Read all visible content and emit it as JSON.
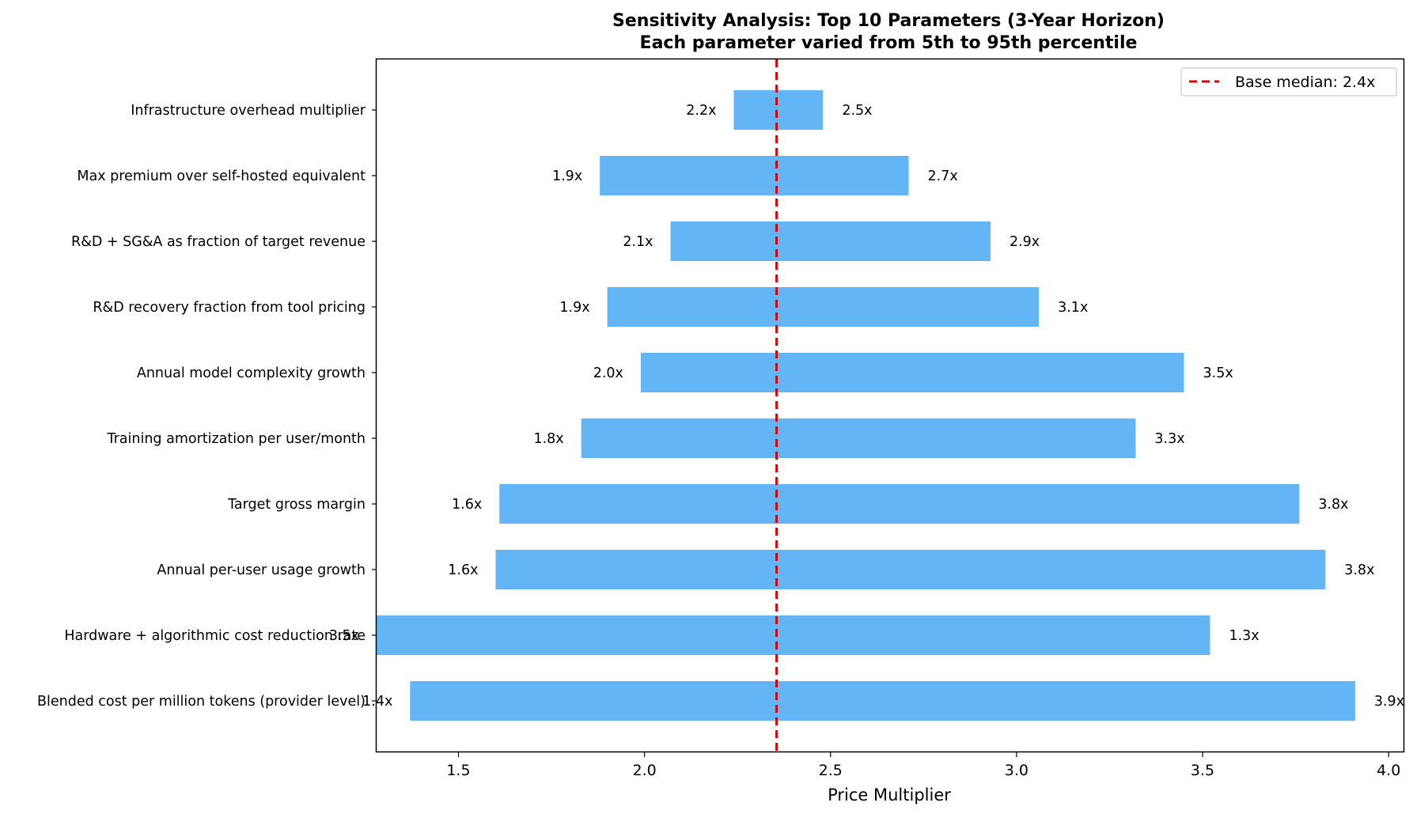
{
  "chart_data": {
    "type": "bar",
    "orientation": "horizontal",
    "title": "Sensitivity Analysis: Top 10 Parameters (3-Year Horizon)",
    "subtitle": "Each parameter varied from 5th to 95th percentile",
    "xlabel": "Price Multiplier",
    "xlim": [
      1.28,
      4.04
    ],
    "xticks": [
      1.5,
      2.0,
      2.5,
      3.0,
      3.5,
      4.0
    ],
    "xtick_labels": [
      "1.5",
      "2.0",
      "2.5",
      "3.0",
      "3.5",
      "4.0"
    ],
    "base_median": 2.355,
    "legend": {
      "label": "Base median: 2.4x",
      "placement": "top-right"
    },
    "bar_color": "#64b5f6",
    "median_color": "#dd0000",
    "grid": false,
    "parameters": [
      {
        "name": "Infrastructure overhead multiplier",
        "low": 2.24,
        "high": 2.48,
        "low_label": "2.2x",
        "high_label": "2.5x"
      },
      {
        "name": "Max premium over self-hosted equivalent",
        "low": 1.88,
        "high": 2.71,
        "low_label": "1.9x",
        "high_label": "2.7x"
      },
      {
        "name": "R&D + SG&A as fraction of target revenue",
        "low": 2.07,
        "high": 2.93,
        "low_label": "2.1x",
        "high_label": "2.9x"
      },
      {
        "name": "R&D recovery fraction from tool pricing",
        "low": 1.9,
        "high": 3.06,
        "low_label": "1.9x",
        "high_label": "3.1x"
      },
      {
        "name": "Annual model complexity growth",
        "low": 1.99,
        "high": 3.45,
        "low_label": "2.0x",
        "high_label": "3.5x"
      },
      {
        "name": "Training amortization per user/month",
        "low": 1.83,
        "high": 3.32,
        "low_label": "1.8x",
        "high_label": "3.3x"
      },
      {
        "name": "Target gross margin",
        "low": 1.61,
        "high": 3.76,
        "low_label": "1.6x",
        "high_label": "3.8x"
      },
      {
        "name": "Annual per-user usage growth",
        "low": 1.6,
        "high": 3.83,
        "low_label": "1.6x",
        "high_label": "3.8x"
      },
      {
        "name": "Hardware + algorithmic cost reduction rate",
        "low": 1.28,
        "high": 3.52,
        "low_label": "3.5x",
        "high_label": "1.3x"
      },
      {
        "name": "Blended cost per million tokens (provider level)",
        "low": 1.37,
        "high": 3.91,
        "low_label": "1.4x",
        "high_label": "3.9x"
      }
    ]
  }
}
